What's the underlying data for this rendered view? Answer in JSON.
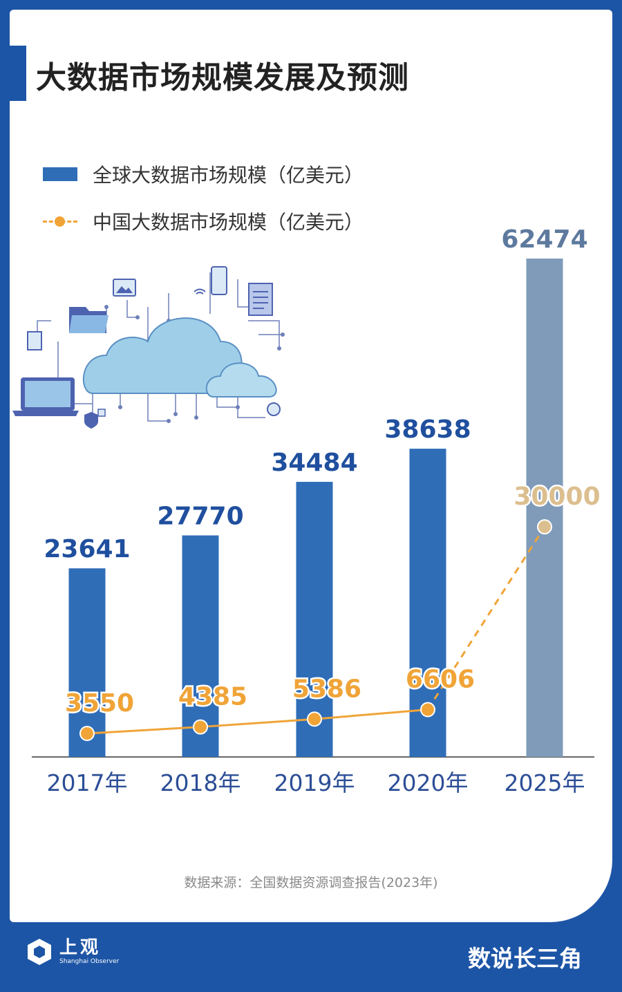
{
  "title": "大数据市场规模发展及预测",
  "legend": {
    "bar_label": "全球大数据市场规模（亿美元）",
    "line_label": "中国大数据市场规模（亿美元）"
  },
  "chart_data": {
    "type": "bar",
    "categories": [
      "2017年",
      "2018年",
      "2019年",
      "2020年",
      "2025年"
    ],
    "series": [
      {
        "name": "全球大数据市场规模（亿美元）",
        "type": "bar",
        "values": [
          23641,
          27770,
          34484,
          38638,
          62474
        ]
      },
      {
        "name": "中国大数据市场规模（亿美元）",
        "type": "line",
        "values": [
          3550,
          4385,
          5386,
          6606,
          30000
        ]
      }
    ],
    "colors": {
      "bar": "#2f6db7",
      "bar_forecast": "#7f9bb9",
      "line": "#f0a437",
      "line_forecast_point": "#dcbf8f",
      "bar_label": "#1f4f9e"
    }
  },
  "source": "数据来源：全国数据资源调查报告(2023年)",
  "footer": {
    "logo_name": "上观",
    "logo_sub": "Shanghai Observer",
    "brand": "数说长三角"
  }
}
